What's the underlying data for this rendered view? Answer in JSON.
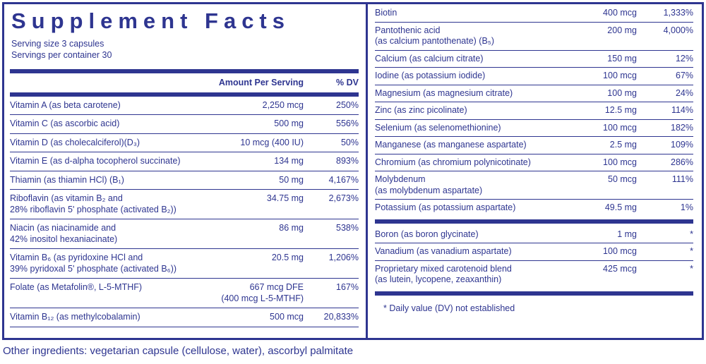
{
  "colors": {
    "navy": "#2e3590",
    "background": "#ffffff"
  },
  "title": "Supplement Facts",
  "serving_size": "Serving size 3 capsules",
  "servings_per_container": "Servings per container 30",
  "column_headers": {
    "amount": "Amount Per Serving",
    "dv": "% DV"
  },
  "left_rows": [
    {
      "name": "Vitamin A (as beta carotene)",
      "amount": "2,250 mcg",
      "dv": "250%"
    },
    {
      "name": "Vitamin C (as ascorbic acid)",
      "amount": "500 mg",
      "dv": "556%"
    },
    {
      "name": "Vitamin D (as cholecalciferol)(D₃)",
      "amount": "10 mcg (400 IU)",
      "dv": "50%"
    },
    {
      "name": "Vitamin E (as d-alpha tocopherol succinate)",
      "amount": "134 mg",
      "dv": "893%"
    },
    {
      "name": "Thiamin (as thiamin HCl) (B₁)",
      "amount": "50 mg",
      "dv": "4,167%"
    },
    {
      "name": "Riboflavin (as vitamin B₂ and",
      "name2": "28% riboflavin 5' phosphate (activated B₂))",
      "amount": "34.75 mg",
      "dv": "2,673%"
    },
    {
      "name": "Niacin (as niacinamide and",
      "name2": "42% inositol hexaniacinate)",
      "amount": "86 mg",
      "dv": "538%"
    },
    {
      "name": "Vitamin B₆ (as pyridoxine HCl and",
      "name2": "39% pyridoxal 5' phosphate (activated B₆))",
      "amount": "20.5 mg",
      "dv": "1,206%"
    },
    {
      "name": "Folate (as Metafolin®, L-5-MTHF)",
      "amount": "667 mcg DFE",
      "amount2": "(400 mcg L-5-MTHF)",
      "dv": "167%"
    },
    {
      "name": "Vitamin B₁₂ (as methylcobalamin)",
      "amount": "500 mcg",
      "dv": "20,833%"
    }
  ],
  "right_rows": [
    {
      "name": "Biotin",
      "amount": "400 mcg",
      "dv": "1,333%"
    },
    {
      "name": "Pantothenic acid",
      "name2": "(as calcium pantothenate) (B₅)",
      "amount": "200 mg",
      "dv": "4,000%"
    },
    {
      "name": "Calcium (as calcium citrate)",
      "amount": "150 mg",
      "dv": "12%"
    },
    {
      "name": "Iodine (as potassium iodide)",
      "amount": "100 mcg",
      "dv": "67%"
    },
    {
      "name": "Magnesium (as magnesium citrate)",
      "amount": "100 mg",
      "dv": "24%"
    },
    {
      "name": "Zinc (as zinc picolinate)",
      "amount": "12.5 mg",
      "dv": "114%"
    },
    {
      "name": "Selenium (as selenomethionine)",
      "amount": "100 mcg",
      "dv": "182%"
    },
    {
      "name": "Manganese (as manganese aspartate)",
      "amount": "2.5 mg",
      "dv": "109%"
    },
    {
      "name": "Chromium (as chromium polynicotinate)",
      "amount": "100 mcg",
      "dv": "286%"
    },
    {
      "name": "Molybdenum",
      "name2": "(as molybdenum aspartate)",
      "amount": "50 mcg",
      "dv": "111%"
    },
    {
      "name": "Potassium (as potassium aspartate)",
      "amount": "49.5 mg",
      "dv": "1%"
    }
  ],
  "right_footnote_rows": [
    {
      "name": "Boron (as boron glycinate)",
      "amount": "1 mg",
      "dv": "*"
    },
    {
      "name": "Vanadium (as vanadium aspartate)",
      "amount": "100 mcg",
      "dv": "*"
    },
    {
      "name": "Proprietary mixed carotenoid blend",
      "name2": "(as lutein, lycopene, zeaxanthin)",
      "amount": "425 mcg",
      "dv": "*"
    }
  ],
  "footnote": "* Daily value (DV) not established",
  "other_ingredients": "Other ingredients: vegetarian capsule (cellulose, water), ascorbyl palmitate"
}
